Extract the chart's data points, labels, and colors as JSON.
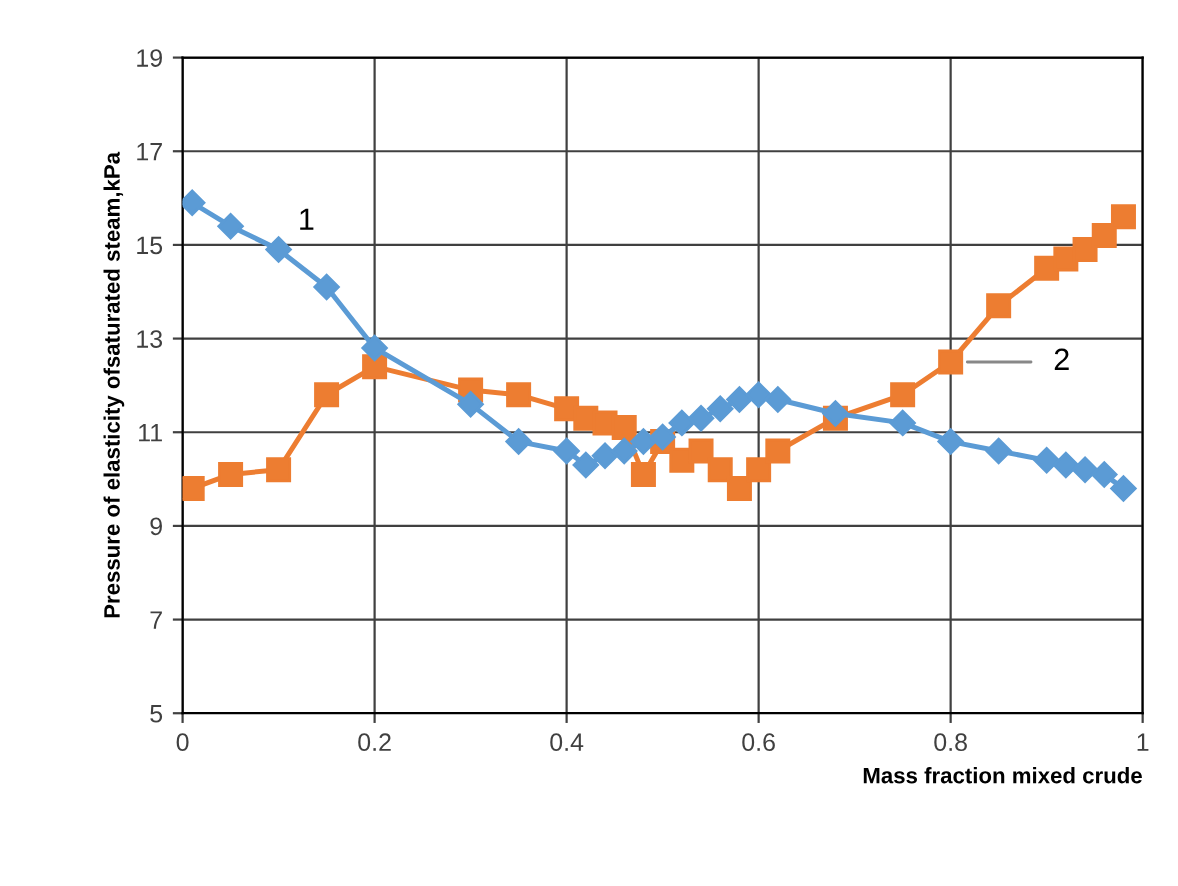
{
  "chart_data": {
    "type": "line",
    "xlabel": "Mass fraction mixed crude",
    "ylabel": "Pressure of elasticity ofsaturated steam,kPa",
    "xlim": [
      0,
      1
    ],
    "xticks": [
      0,
      0.2,
      0.4,
      0.6,
      0.8,
      1
    ],
    "ylim": [
      5,
      19
    ],
    "yticks": [
      5,
      7,
      9,
      11,
      13,
      15,
      17,
      19
    ],
    "grid": true,
    "series": [
      {
        "color": "#5b9bd5",
        "marker": "diamond",
        "x": [
          0.01,
          0.05,
          0.1,
          0.15,
          0.2,
          0.3,
          0.35,
          0.4,
          0.42,
          0.44,
          0.46,
          0.48,
          0.5,
          0.52,
          0.54,
          0.56,
          0.58,
          0.6,
          0.62,
          0.68,
          0.75,
          0.8,
          0.85,
          0.9,
          0.92,
          0.94,
          0.96,
          0.98
        ],
        "values": [
          15.9,
          15.4,
          14.9,
          14.1,
          12.8,
          11.6,
          10.8,
          10.6,
          10.3,
          10.5,
          10.6,
          10.8,
          10.9,
          11.2,
          11.3,
          11.5,
          11.7,
          11.8,
          11.7,
          11.4,
          11.2,
          10.8,
          10.6,
          10.4,
          10.3,
          10.2,
          10.1,
          9.8
        ]
      },
      {
        "color": "#ed7d31",
        "marker": "square",
        "x": [
          0.01,
          0.05,
          0.1,
          0.15,
          0.2,
          0.3,
          0.35,
          0.4,
          0.42,
          0.44,
          0.46,
          0.48,
          0.5,
          0.52,
          0.54,
          0.56,
          0.58,
          0.6,
          0.62,
          0.68,
          0.75,
          0.8,
          0.85,
          0.9,
          0.92,
          0.94,
          0.96,
          0.98
        ],
        "values": [
          9.8,
          10.1,
          10.2,
          11.8,
          12.4,
          11.9,
          11.8,
          11.5,
          11.3,
          11.2,
          11.1,
          10.1,
          10.8,
          10.4,
          10.6,
          10.2,
          9.8,
          10.2,
          10.6,
          11.3,
          11.8,
          12.5,
          13.7,
          14.5,
          14.7,
          14.9,
          15.2,
          15.6
        ]
      }
    ],
    "annotations": [
      {
        "text": "1",
        "x": 0.1,
        "y": 14.9
      },
      {
        "text": "2",
        "x": 0.8,
        "y": 12.5
      }
    ]
  }
}
